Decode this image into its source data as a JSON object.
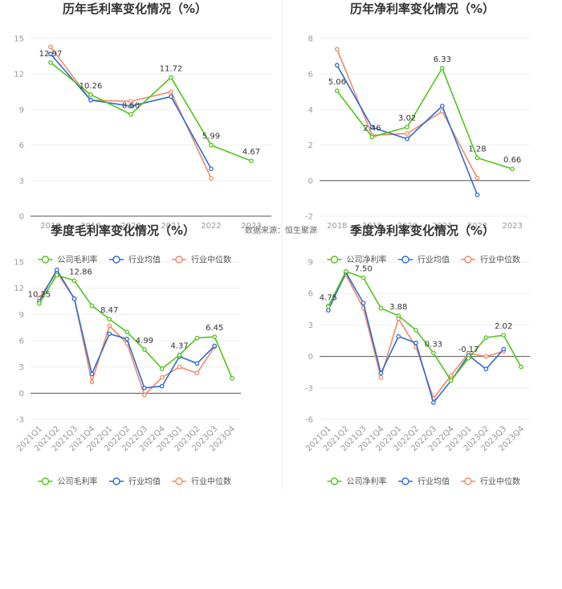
{
  "source_label": "数据来源：恒生聚源",
  "colors": {
    "company": "#52c41a",
    "industry_avg": "#2f6bd6",
    "industry_median": "#f08a65"
  },
  "chart_data": [
    {
      "id": "annual-gross",
      "type": "line",
      "title": "历年毛利率变化情况（%）",
      "categories": [
        "2018",
        "2019",
        "2020",
        "2021",
        "2022",
        "2023"
      ],
      "ylim": [
        0,
        15
      ],
      "yticks": [
        0,
        3,
        6,
        9,
        12,
        15
      ],
      "series": [
        {
          "name": "公司毛利率",
          "key": "company",
          "values": [
            12.97,
            10.26,
            8.6,
            11.72,
            5.99,
            4.67
          ]
        },
        {
          "name": "行业均值",
          "key": "industry_avg",
          "values": [
            13.7,
            9.8,
            9.3,
            10.1,
            4.0,
            null
          ]
        },
        {
          "name": "行业中位数",
          "key": "industry_median",
          "values": [
            14.3,
            9.8,
            9.7,
            10.5,
            3.2,
            null
          ]
        }
      ],
      "data_labels": [
        "12.97",
        "10.26",
        "8.60",
        "11.72",
        "5.99",
        "4.67"
      ],
      "legend": []
    },
    {
      "id": "annual-net",
      "type": "line",
      "title": "历年净利率变化情况（%）",
      "categories": [
        "2018",
        "2019",
        "2020",
        "2021",
        "2022",
        "2023"
      ],
      "ylim": [
        -2,
        8
      ],
      "yticks": [
        -2,
        0,
        2,
        4,
        6,
        8
      ],
      "series": [
        {
          "name": "公司净利率",
          "key": "company",
          "values": [
            5.06,
            2.46,
            3.02,
            6.33,
            1.28,
            0.66
          ]
        },
        {
          "name": "行业均值",
          "key": "industry_avg",
          "values": [
            6.5,
            3.0,
            2.35,
            4.2,
            -0.8,
            null
          ]
        },
        {
          "name": "行业中位数",
          "key": "industry_median",
          "values": [
            7.4,
            2.55,
            2.65,
            3.9,
            0.15,
            null
          ]
        }
      ],
      "data_labels": [
        "5.06",
        "2.46",
        "3.02",
        "6.33",
        "1.28",
        "0.66"
      ],
      "legend": []
    },
    {
      "id": "quarterly-gross",
      "type": "line",
      "title": "季度毛利率变化情况（%）",
      "categories": [
        "2021Q1",
        "2021Q2",
        "2021Q3",
        "2021Q4",
        "2022Q1",
        "2022Q2",
        "2022Q3",
        "2022Q4",
        "2023Q1",
        "2023Q2",
        "2023Q3",
        "2023Q4"
      ],
      "ylim": [
        -3,
        15
      ],
      "yticks": [
        -3,
        0,
        3,
        6,
        9,
        12,
        15
      ],
      "series": [
        {
          "name": "公司毛利率",
          "key": "company",
          "values": [
            10.25,
            13.5,
            12.86,
            10.0,
            8.47,
            7.0,
            4.99,
            2.8,
            4.37,
            6.3,
            6.45,
            1.7
          ]
        },
        {
          "name": "行业均值",
          "key": "industry_avg",
          "values": [
            10.5,
            14.1,
            10.8,
            2.2,
            6.8,
            6.2,
            0.6,
            0.8,
            4.2,
            3.4,
            5.4,
            null
          ]
        },
        {
          "name": "行业中位数",
          "key": "industry_median",
          "values": [
            10.9,
            13.8,
            10.8,
            1.3,
            7.7,
            5.7,
            -0.2,
            1.8,
            3.0,
            2.3,
            5.3,
            null
          ]
        }
      ],
      "data_labels": [
        "10.25",
        "",
        "12.86",
        "",
        "8.47",
        "",
        "4.99",
        "",
        "4.37",
        "",
        "6.45",
        ""
      ],
      "legend": [
        "公司毛利率",
        "行业均值",
        "行业中位数"
      ]
    },
    {
      "id": "quarterly-net",
      "type": "line",
      "title": "季度净利率变化情况（%）",
      "categories": [
        "2021Q1",
        "2021Q2",
        "2021Q3",
        "2021Q4",
        "2022Q1",
        "2022Q2",
        "2022Q3",
        "2022Q4",
        "2023Q1",
        "2023Q2",
        "2023Q3",
        "2023Q4"
      ],
      "ylim": [
        -6,
        9
      ],
      "yticks": [
        -6,
        -3,
        0,
        3,
        6,
        9
      ],
      "series": [
        {
          "name": "公司净利率",
          "key": "company",
          "values": [
            4.75,
            8.1,
            7.5,
            4.6,
            3.88,
            2.5,
            0.33,
            -2.3,
            -0.17,
            1.8,
            2.02,
            -1.0
          ]
        },
        {
          "name": "行业均值",
          "key": "industry_avg",
          "values": [
            4.4,
            8.0,
            5.1,
            -1.6,
            1.9,
            1.3,
            -4.4,
            -2.3,
            0.1,
            -1.2,
            0.7,
            null
          ]
        },
        {
          "name": "行业中位数",
          "key": "industry_median",
          "values": [
            4.8,
            7.8,
            4.6,
            -2.0,
            3.6,
            0.9,
            -4.0,
            -1.8,
            0.3,
            0.0,
            0.5,
            null
          ]
        }
      ],
      "data_labels": [
        "4.75",
        "",
        "7.50",
        "",
        "3.88",
        "",
        "0.33",
        "",
        "-0.17",
        "",
        "2.02",
        ""
      ],
      "legend": [
        "公司净利率",
        "行业均值",
        "行业中位数"
      ]
    }
  ]
}
